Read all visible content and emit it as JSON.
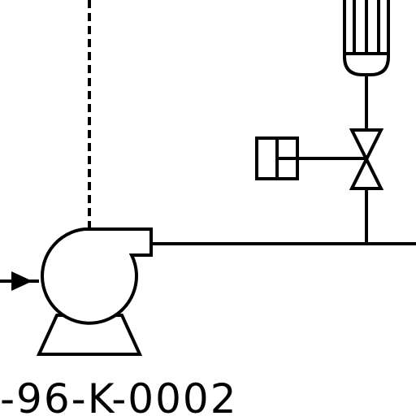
{
  "diagram": {
    "equipment_tag": "-96-K-0002",
    "stroke_color": "#000000",
    "background_color": "#ffffff",
    "symbols": [
      "centrifugal-pump",
      "motor-actuator",
      "gate-valve",
      "controller-box",
      "process-line",
      "signal-line"
    ]
  }
}
